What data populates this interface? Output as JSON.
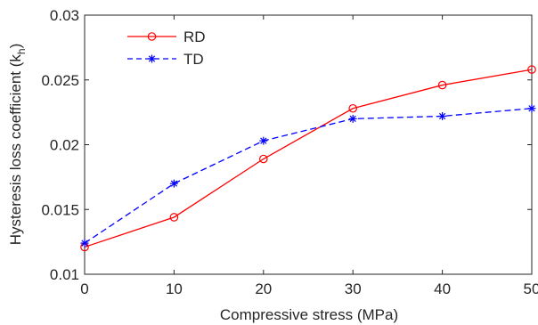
{
  "chart_data": {
    "type": "line",
    "title": "",
    "xlabel": "Compressive stress (MPa)",
    "ylabel": "Hysteresis loss coefficient (k",
    "ylabel_subscript": "h",
    "ylabel_suffix": ")",
    "xlim": [
      0,
      50
    ],
    "ylim": [
      0.01,
      0.03
    ],
    "x_ticks": [
      0,
      10,
      20,
      30,
      40,
      50
    ],
    "y_ticks": [
      0.01,
      0.015,
      0.02,
      0.025,
      0.03
    ],
    "x_tick_labels": [
      "0",
      "10",
      "20",
      "30",
      "40",
      "50"
    ],
    "y_tick_labels": [
      "0.01",
      "0.015",
      "0.02",
      "0.025",
      "0.03"
    ],
    "grid": false,
    "legend_position": "top-left",
    "x": [
      0,
      10,
      20,
      30,
      40,
      50
    ],
    "series": [
      {
        "name": "RD",
        "values": [
          0.0121,
          0.0144,
          0.0189,
          0.0228,
          0.0246,
          0.0258
        ],
        "color": "#ff0000",
        "line_style": "solid",
        "marker": "circle"
      },
      {
        "name": "TD",
        "values": [
          0.0124,
          0.017,
          0.0203,
          0.022,
          0.0222,
          0.0228
        ],
        "color": "#0000ff",
        "line_style": "dashed",
        "marker": "asterisk"
      }
    ]
  }
}
